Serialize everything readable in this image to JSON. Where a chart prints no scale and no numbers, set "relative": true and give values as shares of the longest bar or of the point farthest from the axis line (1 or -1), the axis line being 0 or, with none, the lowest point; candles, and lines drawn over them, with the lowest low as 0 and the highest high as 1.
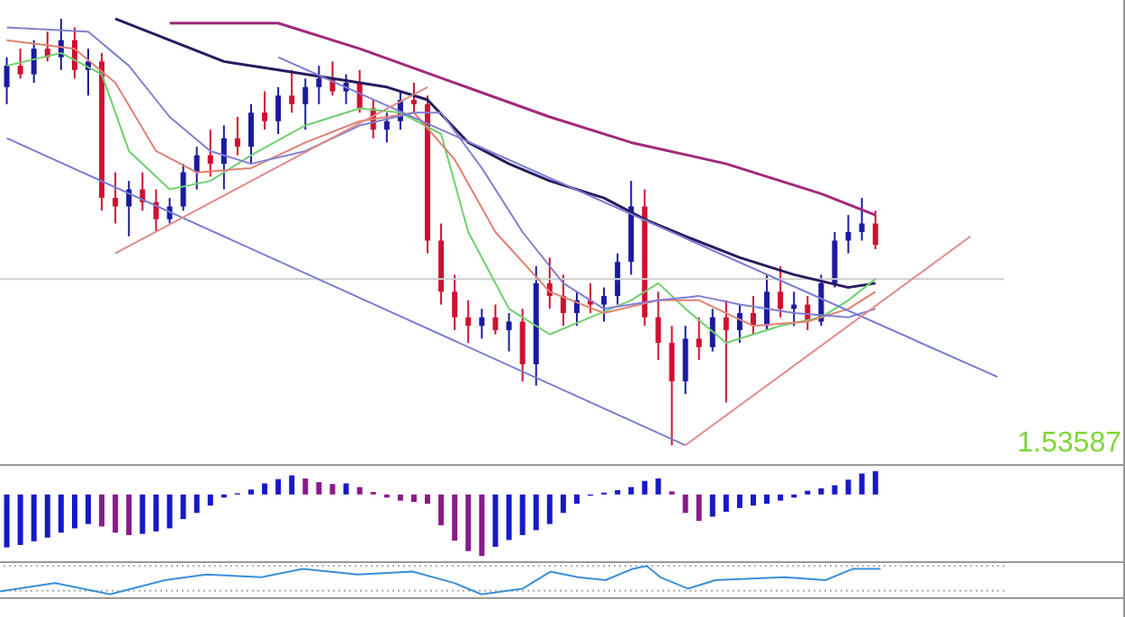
{
  "chart_data": [
    {
      "type": "candlestick",
      "relative": true,
      "categories": [
        null,
        null,
        null,
        null,
        null,
        null,
        null,
        null,
        null,
        null,
        null,
        null,
        null,
        null,
        null,
        null,
        null,
        null,
        null,
        null,
        null,
        null,
        null,
        null,
        null,
        null,
        null,
        null,
        null,
        null,
        null,
        null,
        null,
        null,
        null,
        null,
        null,
        null,
        null,
        null,
        null,
        null,
        null,
        null,
        null,
        null,
        null,
        null,
        null,
        null,
        null,
        null,
        null,
        null,
        null,
        null,
        null,
        null,
        null,
        null,
        null,
        null,
        null,
        null,
        null,
        null,
        null,
        null,
        null,
        null,
        null,
        null,
        null,
        null
      ],
      "ohlc": [
        [
          0.84,
          0.91,
          0.8,
          0.89
        ],
        [
          0.89,
          0.93,
          0.86,
          0.87
        ],
        [
          0.87,
          0.95,
          0.85,
          0.93
        ],
        [
          0.93,
          0.97,
          0.9,
          0.91
        ],
        [
          0.91,
          1.0,
          0.88,
          0.95
        ],
        [
          0.95,
          0.98,
          0.86,
          0.88
        ],
        [
          0.88,
          0.93,
          0.82,
          0.9
        ],
        [
          0.9,
          0.92,
          0.55,
          0.58
        ],
        [
          0.58,
          0.64,
          0.52,
          0.56
        ],
        [
          0.56,
          0.62,
          0.49,
          0.6
        ],
        [
          0.6,
          0.64,
          0.55,
          0.57
        ],
        [
          0.57,
          0.6,
          0.5,
          0.53
        ],
        [
          0.53,
          0.58,
          0.52,
          0.56
        ],
        [
          0.56,
          0.66,
          0.55,
          0.64
        ],
        [
          0.64,
          0.7,
          0.6,
          0.68
        ],
        [
          0.68,
          0.74,
          0.63,
          0.66
        ],
        [
          0.66,
          0.75,
          0.6,
          0.72
        ],
        [
          0.72,
          0.77,
          0.68,
          0.7
        ],
        [
          0.7,
          0.8,
          0.66,
          0.78
        ],
        [
          0.78,
          0.83,
          0.74,
          0.76
        ],
        [
          0.76,
          0.84,
          0.73,
          0.82
        ],
        [
          0.82,
          0.88,
          0.78,
          0.8
        ],
        [
          0.8,
          0.86,
          0.74,
          0.84
        ],
        [
          0.84,
          0.89,
          0.8,
          0.86
        ],
        [
          0.86,
          0.9,
          0.82,
          0.83
        ],
        [
          0.83,
          0.87,
          0.8,
          0.85
        ],
        [
          0.85,
          0.88,
          0.78,
          0.79
        ],
        [
          0.79,
          0.81,
          0.72,
          0.74
        ],
        [
          0.74,
          0.78,
          0.71,
          0.76
        ],
        [
          0.76,
          0.83,
          0.74,
          0.81
        ],
        [
          0.81,
          0.85,
          0.78,
          0.8
        ],
        [
          0.8,
          0.82,
          0.45,
          0.48
        ],
        [
          0.48,
          0.52,
          0.33,
          0.36
        ],
        [
          0.36,
          0.4,
          0.27,
          0.3
        ],
        [
          0.3,
          0.34,
          0.24,
          0.28
        ],
        [
          0.28,
          0.32,
          0.25,
          0.3
        ],
        [
          0.3,
          0.33,
          0.26,
          0.27
        ],
        [
          0.27,
          0.31,
          0.22,
          0.29
        ],
        [
          0.29,
          0.32,
          0.15,
          0.19
        ],
        [
          0.19,
          0.42,
          0.14,
          0.38
        ],
        [
          0.38,
          0.44,
          0.32,
          0.35
        ],
        [
          0.35,
          0.4,
          0.28,
          0.31
        ],
        [
          0.31,
          0.36,
          0.28,
          0.34
        ],
        [
          0.34,
          0.38,
          0.31,
          0.33
        ],
        [
          0.33,
          0.37,
          0.29,
          0.35
        ],
        [
          0.35,
          0.45,
          0.33,
          0.43
        ],
        [
          0.43,
          0.62,
          0.4,
          0.56
        ],
        [
          0.56,
          0.6,
          0.28,
          0.3
        ],
        [
          0.3,
          0.36,
          0.2,
          0.24
        ],
        [
          0.24,
          0.28,
          0.0,
          0.15
        ],
        [
          0.15,
          0.28,
          0.12,
          0.25
        ],
        [
          0.25,
          0.3,
          0.2,
          0.23
        ],
        [
          0.23,
          0.32,
          0.22,
          0.3
        ],
        [
          0.3,
          0.34,
          0.1,
          0.27
        ],
        [
          0.27,
          0.33,
          0.24,
          0.31
        ],
        [
          0.31,
          0.35,
          0.26,
          0.28
        ],
        [
          0.28,
          0.4,
          0.27,
          0.36
        ],
        [
          0.36,
          0.42,
          0.3,
          0.32
        ],
        [
          0.32,
          0.36,
          0.28,
          0.33
        ],
        [
          0.33,
          0.35,
          0.27,
          0.29
        ],
        [
          0.29,
          0.4,
          0.28,
          0.38
        ],
        [
          0.38,
          0.5,
          0.37,
          0.48
        ],
        [
          0.48,
          0.54,
          0.45,
          0.5
        ],
        [
          0.5,
          0.58,
          0.48,
          0.52
        ],
        [
          0.52,
          0.55,
          0.46,
          0.47
        ],
        null,
        null,
        null,
        null,
        null,
        null,
        null,
        null,
        null
      ],
      "colors": [
        "#1a1aa0",
        "#d01030",
        "#1a1aa0",
        "#d01030",
        "#1a1aa0",
        "#d01030",
        "#1a1aa0",
        "#d01030",
        "#d01030",
        "#1a1aa0",
        "#d01030",
        "#d01030",
        "#1a1aa0",
        "#1a1aa0",
        "#1a1aa0",
        "#d01030",
        "#1a1aa0",
        "#d01030",
        "#1a1aa0",
        "#d01030",
        "#1a1aa0",
        "#d01030",
        "#1a1aa0",
        "#1a1aa0",
        "#d01030",
        "#1a1aa0",
        "#d01030",
        "#d01030",
        "#1a1aa0",
        "#1a1aa0",
        "#d01030",
        "#d01030",
        "#d01030",
        "#d01030",
        "#d01030",
        "#1a1aa0",
        "#d01030",
        "#1a1aa0",
        "#d01030",
        "#1a1aa0",
        "#d01030",
        "#d01030",
        "#1a1aa0",
        "#d01030",
        "#1a1aa0",
        "#1a1aa0",
        "#1a1aa0",
        "#d01030",
        "#d01030",
        "#d01030",
        "#1a1aa0",
        "#d01030",
        "#1a1aa0",
        "#d01030",
        "#1a1aa0",
        "#d01030",
        "#1a1aa0",
        "#d01030",
        "#1a1aa0",
        "#d01030",
        "#1a1aa0",
        "#1a1aa0",
        "#1a1aa0",
        "#1a1aa0",
        "#d01030",
        null,
        null,
        null,
        null,
        null,
        null,
        null,
        null,
        null
      ],
      "series": [
        {
          "type": "line",
          "color": "#a02a7a",
          "values": [
            null,
            null,
            null,
            null,
            null,
            null,
            null,
            null,
            null,
            null,
            null,
            null,
            0.99,
            null,
            null,
            null,
            null,
            null,
            null,
            null,
            0.99,
            null,
            null,
            null,
            null,
            null,
            0.93,
            null,
            null,
            null,
            null,
            null,
            null,
            0.85,
            null,
            null,
            null,
            null,
            null,
            null,
            0.77,
            null,
            null,
            null,
            null,
            null,
            0.71,
            null,
            null,
            null,
            null,
            null,
            null,
            0.66,
            null,
            null,
            null,
            null,
            null,
            null,
            0.59,
            null,
            null,
            null,
            0.54,
            null,
            null,
            null,
            null,
            null,
            null,
            null,
            null,
            null
          ]
        },
        {
          "type": "line",
          "color": "#2a1a5e",
          "values": [
            null,
            null,
            null,
            null,
            null,
            null,
            null,
            null,
            1.0,
            null,
            null,
            null,
            0.95,
            null,
            null,
            null,
            0.9,
            null,
            null,
            null,
            0.88,
            null,
            null,
            null,
            0.86,
            null,
            null,
            null,
            0.84,
            null,
            null,
            0.81,
            null,
            null,
            0.71,
            null,
            null,
            0.66,
            null,
            null,
            0.62,
            null,
            null,
            null,
            0.58,
            null,
            null,
            0.53,
            null,
            null,
            0.49,
            null,
            null,
            null,
            0.44,
            null,
            null,
            null,
            0.4,
            null,
            null,
            null,
            0.37,
            null,
            0.38,
            null,
            null,
            null,
            null,
            null,
            null,
            null,
            null,
            null
          ]
        },
        {
          "type": "line",
          "color": "#6fd06f",
          "values": [
            0.89,
            null,
            null,
            null,
            0.92,
            null,
            null,
            0.87,
            null,
            0.69,
            null,
            null,
            0.6,
            null,
            null,
            0.62,
            null,
            null,
            0.68,
            null,
            null,
            null,
            0.75,
            null,
            null,
            null,
            0.79,
            null,
            null,
            0.78,
            null,
            null,
            0.73,
            null,
            0.5,
            null,
            null,
            0.32,
            null,
            null,
            0.26,
            null,
            null,
            0.3,
            null,
            null,
            0.34,
            null,
            0.38,
            null,
            0.32,
            null,
            null,
            0.24,
            null,
            null,
            null,
            0.28,
            null,
            null,
            0.3,
            null,
            0.34,
            null,
            0.39,
            null,
            null,
            null,
            null,
            null,
            null,
            null,
            null,
            null
          ]
        },
        {
          "type": "line",
          "color": "#e08070",
          "values": [
            0.95,
            null,
            null,
            null,
            null,
            0.93,
            null,
            null,
            0.85,
            null,
            null,
            0.69,
            null,
            null,
            0.64,
            null,
            null,
            null,
            0.65,
            null,
            null,
            null,
            0.71,
            null,
            null,
            null,
            0.76,
            null,
            null,
            null,
            0.78,
            null,
            null,
            0.67,
            null,
            null,
            0.5,
            null,
            null,
            null,
            0.36,
            null,
            null,
            null,
            0.31,
            null,
            null,
            null,
            0.34,
            null,
            null,
            0.34,
            null,
            null,
            null,
            0.28,
            null,
            null,
            null,
            0.29,
            null,
            null,
            0.32,
            null,
            0.36,
            null,
            null,
            null,
            null,
            null,
            null,
            null,
            null,
            null
          ]
        },
        {
          "type": "line",
          "color": "#8080d0",
          "values": [
            0.98,
            null,
            null,
            null,
            null,
            null,
            0.97,
            null,
            null,
            0.89,
            null,
            null,
            0.77,
            null,
            null,
            0.69,
            null,
            null,
            0.66,
            null,
            null,
            null,
            0.69,
            null,
            null,
            null,
            0.75,
            null,
            null,
            null,
            0.78,
            null,
            0.78,
            null,
            null,
            0.65,
            null,
            null,
            0.5,
            null,
            null,
            0.38,
            null,
            null,
            0.32,
            null,
            null,
            null,
            0.34,
            null,
            null,
            0.35,
            null,
            null,
            0.33,
            null,
            null,
            null,
            0.31,
            null,
            null,
            null,
            0.3,
            null,
            0.32,
            null,
            null,
            null,
            null,
            null,
            null,
            null,
            null,
            null
          ]
        },
        {
          "type": "line",
          "color": "#7a7ad0",
          "values": [
            null,
            null,
            null,
            null,
            null,
            null,
            null,
            null,
            null,
            null,
            null,
            null,
            null,
            null,
            null,
            null,
            null,
            null,
            null,
            null,
            0.91,
            null,
            null,
            null,
            null,
            null,
            null,
            null,
            null,
            null,
            null,
            null,
            null,
            null,
            null,
            null,
            null,
            null,
            null,
            null,
            null,
            null,
            null,
            null,
            null,
            null,
            null,
            null,
            null,
            null,
            null,
            null,
            null,
            null,
            null,
            null,
            null,
            null,
            null,
            null,
            null,
            null,
            null,
            null,
            null,
            null,
            null,
            null,
            null,
            null,
            null,
            null,
            null,
            0.16
          ]
        },
        {
          "type": "line",
          "color": "#7a7ad0",
          "values": [
            0.72,
            null,
            null,
            null,
            null,
            null,
            null,
            null,
            null,
            null,
            null,
            null,
            null,
            null,
            null,
            null,
            null,
            null,
            null,
            null,
            null,
            null,
            null,
            null,
            null,
            null,
            null,
            null,
            null,
            null,
            null,
            null,
            null,
            null,
            null,
            null,
            null,
            null,
            null,
            null,
            null,
            null,
            null,
            null,
            null,
            null,
            null,
            null,
            null,
            null,
            0,
            null,
            null,
            null,
            null,
            null,
            null,
            null,
            null,
            null,
            null,
            null,
            null,
            null,
            null,
            null,
            null,
            null,
            null,
            null,
            null,
            null,
            null,
            null
          ]
        },
        {
          "type": "line",
          "color": "#e08a8a",
          "values": [
            null,
            null,
            null,
            null,
            null,
            null,
            null,
            null,
            0.45,
            null,
            null,
            null,
            null,
            null,
            null,
            null,
            null,
            null,
            null,
            null,
            null,
            null,
            null,
            null,
            null,
            null,
            null,
            null,
            null,
            null,
            null,
            0.84,
            null,
            null,
            null,
            null,
            null,
            null,
            null,
            null,
            null,
            null,
            null,
            null,
            null,
            null,
            null,
            null,
            null,
            null,
            null,
            null,
            null,
            null,
            null,
            null,
            null,
            null,
            null,
            null,
            null,
            null,
            null,
            null,
            null,
            null,
            null,
            null,
            null,
            null,
            null,
            null,
            null,
            null
          ]
        },
        {
          "type": "line",
          "color": "#e08a8a",
          "values": [
            null,
            null,
            null,
            null,
            null,
            null,
            null,
            null,
            null,
            null,
            null,
            null,
            null,
            null,
            null,
            null,
            null,
            null,
            null,
            null,
            null,
            null,
            null,
            null,
            null,
            null,
            null,
            null,
            null,
            null,
            null,
            null,
            null,
            null,
            null,
            null,
            null,
            null,
            null,
            null,
            null,
            null,
            null,
            null,
            null,
            null,
            null,
            null,
            null,
            null,
            0,
            null,
            null,
            null,
            null,
            null,
            null,
            null,
            null,
            null,
            null,
            null,
            null,
            null,
            null,
            null,
            null,
            null,
            null,
            null,
            null,
            0.49,
            null,
            null
          ]
        }
      ],
      "ref_lines": [
        {
          "axis": "y",
          "value": 0.39,
          "color": "#cccccc",
          "line_style": "solid"
        }
      ],
      "annotations": [
        "1.53587"
      ]
    },
    {
      "type": "bar",
      "relative": true,
      "categories": [
        null,
        null,
        null,
        null,
        null,
        null,
        null,
        null,
        null,
        null,
        null,
        null,
        null,
        null,
        null,
        null,
        null,
        null,
        null,
        null,
        null,
        null,
        null,
        null,
        null,
        null,
        null,
        null,
        null,
        null,
        null,
        null,
        null,
        null,
        null,
        null,
        null,
        null,
        null,
        null,
        null,
        null,
        null,
        null,
        null,
        null,
        null,
        null,
        null,
        null,
        null,
        null,
        null,
        null,
        null,
        null,
        null,
        null,
        null,
        null,
        null,
        null,
        null,
        null,
        null,
        null,
        null,
        null,
        null,
        null,
        null,
        null,
        null,
        null
      ],
      "values": [
        -0.86,
        -0.82,
        -0.76,
        -0.7,
        -0.62,
        -0.55,
        -0.48,
        -0.52,
        -0.62,
        -0.66,
        -0.64,
        -0.6,
        -0.55,
        -0.4,
        -0.3,
        -0.18,
        -0.05,
        0.02,
        0.08,
        0.18,
        0.25,
        0.31,
        0.26,
        0.2,
        0.17,
        0.18,
        0.12,
        0.04,
        -0.05,
        -0.1,
        -0.12,
        -0.15,
        -0.5,
        -0.75,
        -0.92,
        -1.0,
        -0.85,
        -0.74,
        -0.66,
        -0.58,
        -0.48,
        -0.3,
        -0.15,
        -0.02,
        0.03,
        0.07,
        0.12,
        0.22,
        0.26,
        0.05,
        -0.3,
        -0.43,
        -0.36,
        -0.28,
        -0.22,
        -0.18,
        -0.15,
        -0.1,
        -0.05,
        0.06,
        0.1,
        0.15,
        0.24,
        0.34,
        0.38,
        null,
        null,
        null,
        null,
        null,
        null,
        null,
        null,
        null
      ],
      "colors": [
        "#1818c8",
        "#1818c8",
        "#1818c8",
        "#1818c8",
        "#1818c8",
        "#1818c8",
        "#1818c8",
        "#8a1a8a",
        "#8a1a8a",
        "#8a1a8a",
        "#1818c8",
        "#1818c8",
        "#1818c8",
        "#1818c8",
        "#1818c8",
        "#1818c8",
        "#1818c8",
        "#1818c8",
        "#1818c8",
        "#1818c8",
        "#1818c8",
        "#1818c8",
        "#8a1a8a",
        "#8a1a8a",
        "#8a1a8a",
        "#1818c8",
        "#8a1a8a",
        "#8a1a8a",
        "#8a1a8a",
        "#8a1a8a",
        "#8a1a8a",
        "#8a1a8a",
        "#8a1a8a",
        "#8a1a8a",
        "#8a1a8a",
        "#8a1a8a",
        "#1818c8",
        "#1818c8",
        "#1818c8",
        "#1818c8",
        "#1818c8",
        "#1818c8",
        "#1818c8",
        "#1818c8",
        "#1818c8",
        "#1818c8",
        "#1818c8",
        "#1818c8",
        "#1818c8",
        "#8a1a8a",
        "#8a1a8a",
        "#8a1a8a",
        "#1818c8",
        "#1818c8",
        "#1818c8",
        "#1818c8",
        "#1818c8",
        "#1818c8",
        "#1818c8",
        "#1818c8",
        "#1818c8",
        "#1818c8",
        "#1818c8",
        "#1818c8",
        "#1818c8",
        null,
        null,
        null,
        null,
        null,
        null,
        null,
        null,
        null
      ]
    },
    {
      "type": "line",
      "relative": true,
      "color": "#3a8fd8",
      "categories": [
        null,
        null,
        null,
        null,
        null,
        null,
        null,
        null,
        null,
        null,
        null,
        null,
        null,
        null,
        null,
        null,
        null,
        null,
        null,
        null,
        null,
        null,
        null,
        null,
        null,
        null,
        null,
        null,
        null,
        null,
        null,
        null,
        null,
        null,
        null,
        null,
        null,
        null,
        null,
        null,
        null,
        null,
        null,
        null,
        null,
        null,
        null,
        null,
        null,
        null,
        null,
        null,
        null,
        null,
        null,
        null,
        null,
        null,
        null,
        null,
        null,
        null,
        null,
        null,
        null,
        null,
        null,
        null,
        null,
        null,
        null,
        null,
        null,
        null
      ],
      "values": [
        0.1,
        null,
        null,
        null,
        0.4,
        null,
        null,
        null,
        0,
        null,
        null,
        null,
        0.5,
        null,
        null,
        0.7,
        null,
        null,
        null,
        0.6,
        null,
        null,
        0.9,
        null,
        null,
        null,
        0.7,
        null,
        null,
        null,
        0.8,
        null,
        null,
        0.4,
        null,
        0,
        null,
        null,
        0.2,
        null,
        0.8,
        null,
        0.6,
        null,
        0.5,
        null,
        0.9,
        1.0,
        0.6,
        null,
        0.2,
        null,
        0.5,
        null,
        null,
        null,
        null,
        0.6,
        null,
        null,
        0.5,
        null,
        0.9,
        null,
        0.9,
        null,
        null,
        null,
        null,
        null,
        null,
        null,
        null,
        null
      ],
      "ref_lines": [
        {
          "axis": "y",
          "value": 1.0,
          "color": "#aaaaaa",
          "line_style": "dotted"
        },
        {
          "axis": "y",
          "value": 0.13,
          "color": "#aaaaaa",
          "line_style": "dotted"
        }
      ]
    }
  ]
}
